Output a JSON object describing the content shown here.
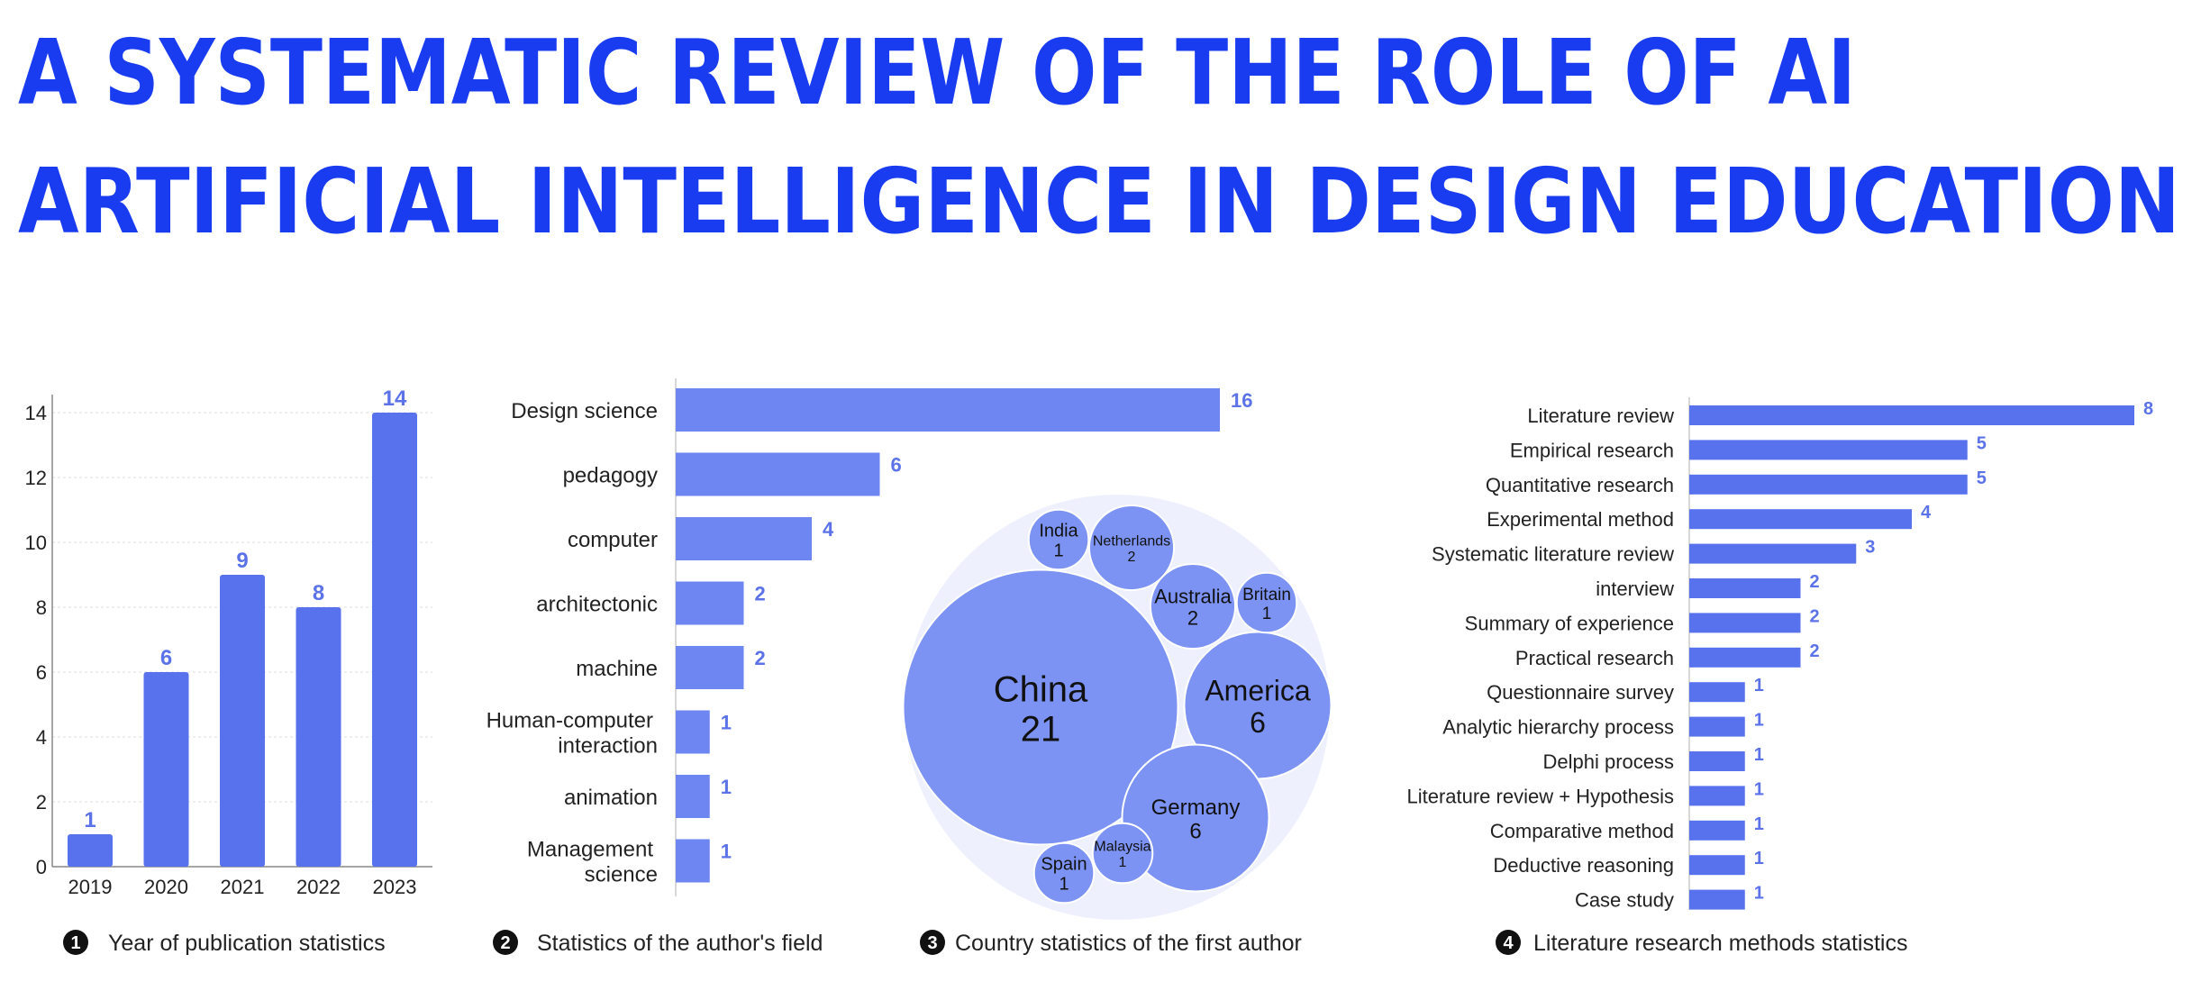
{
  "title": {
    "line1": "A SYSTEMATIC REVIEW OF THE ROLE OF AI",
    "line2": "ARTIFICIAL INTELLIGENCE IN DESIGN EDUCATION"
  },
  "colors": {
    "title": "#1a3cf0",
    "bar": "#5872ee",
    "bar_light": "#6e86f2",
    "label": "#5b72e8",
    "text": "#222222",
    "bubble_bg": "#eef1fd",
    "bubble": "#7c93f3"
  },
  "captions": [
    {
      "num": "1",
      "text": "Year of publication statistics"
    },
    {
      "num": "2",
      "text": "Statistics of the author's field"
    },
    {
      "num": "3",
      "text": "Country statistics of the first author"
    },
    {
      "num": "4",
      "text": "Literature research methods statistics"
    }
  ],
  "chart_data": [
    {
      "type": "bar",
      "categories": [
        "2019",
        "2020",
        "2021",
        "2022",
        "2023"
      ],
      "values": [
        1,
        6,
        9,
        8,
        14
      ],
      "ylim": [
        0,
        14
      ],
      "yticks": [
        "0",
        "2",
        "4",
        "6",
        "8",
        "10",
        "12",
        "14"
      ],
      "grid": true
    },
    {
      "type": "bar",
      "orientation": "horizontal",
      "categories": [
        [
          "Design science"
        ],
        [
          "pedagogy"
        ],
        [
          "computer"
        ],
        [
          "architectonic"
        ],
        [
          "machine"
        ],
        [
          "Human-computer",
          "interaction"
        ],
        [
          "animation"
        ],
        [
          "Management",
          "science"
        ]
      ],
      "values": [
        16,
        6,
        4,
        2,
        2,
        1,
        1,
        1
      ],
      "xlim": [
        0,
        16
      ]
    },
    {
      "type": "bubble",
      "categories": [
        "China",
        "America",
        "Germany",
        "Netherlands",
        "Australia",
        "India",
        "Britain",
        "Spain",
        "Malaysia"
      ],
      "values": [
        21,
        6,
        6,
        2,
        2,
        1,
        1,
        1,
        1
      ]
    },
    {
      "type": "bar",
      "orientation": "horizontal",
      "categories": [
        "Literature review",
        "Empirical research",
        "Quantitative research",
        "Experimental method",
        "Systematic literature review",
        "interview",
        "Summary of experience",
        "Practical research",
        "Questionnaire survey",
        "Analytic hierarchy process",
        "Delphi process",
        "Literature review + Hypothesis",
        "Comparative method",
        "Deductive reasoning",
        "Case study"
      ],
      "values": [
        8,
        5,
        5,
        4,
        3,
        2,
        2,
        2,
        1,
        1,
        1,
        1,
        1,
        1,
        1
      ],
      "xlim": [
        0,
        8
      ]
    }
  ]
}
